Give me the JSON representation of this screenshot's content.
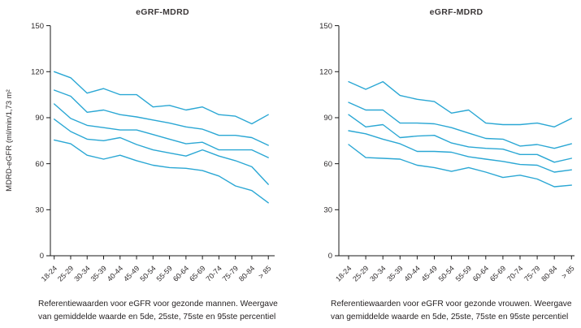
{
  "chart_data": [
    {
      "type": "line",
      "title": "eGRF-MDRD",
      "ylabel": "MDRD-eGFR (ml/min/1,73 m²",
      "caption": "Referentiewaarden voor eGFR voor gezonde mannen. Weergave van gemiddelde waarde en 5de, 25ste, 75ste en 95ste percentiel",
      "categories": [
        "18-24",
        "25-29",
        "30-34",
        "35-39",
        "40-44",
        "45-49",
        "50-54",
        "55-59",
        "60-64",
        "65-69",
        "70-74",
        "75-79",
        "80-84",
        "> 85"
      ],
      "yticks": [
        0,
        30,
        60,
        90,
        120,
        150
      ],
      "ylim": [
        0,
        150
      ],
      "grid": false,
      "legend": "none",
      "line_color": "#2AA7D4",
      "axis_color": "#1a1a1a",
      "series": [
        {
          "name": "95ste percentiel",
          "values": [
            120,
            116,
            106,
            109,
            105,
            105,
            97,
            98,
            95,
            97,
            92,
            91,
            86,
            92
          ]
        },
        {
          "name": "75ste percentiel",
          "values": [
            108,
            104,
            93.5,
            95,
            92,
            90.5,
            88.5,
            86.5,
            84,
            82.5,
            78.5,
            78.5,
            77,
            72
          ]
        },
        {
          "name": "gemiddelde waarde",
          "values": [
            99,
            89.5,
            85,
            83.5,
            82,
            82,
            79,
            76,
            73,
            74,
            69,
            69,
            69,
            64
          ]
        },
        {
          "name": "25ste percentiel",
          "values": [
            89,
            81,
            76,
            75,
            77,
            72.5,
            69,
            67,
            65,
            69,
            65,
            62,
            58,
            46.5
          ]
        },
        {
          "name": "5de percentiel",
          "values": [
            75.5,
            73,
            65.5,
            63,
            65.5,
            62,
            59,
            57.5,
            57,
            55.5,
            52,
            45.5,
            42.5,
            34.5
          ]
        }
      ]
    },
    {
      "type": "line",
      "title": "eGRF-MDRD",
      "ylabel": "",
      "caption": "Referentiewaarden voor eGFR voor gezonde vrouwen. Weergave van gemiddelde waarde en 5de, 25ste, 75ste en 95ste percentiel",
      "categories": [
        "18-24",
        "25-29",
        "30-34",
        "35-39",
        "40-44",
        "45-49",
        "50-54",
        "55-59",
        "60-64",
        "65-69",
        "70-74",
        "75-79",
        "80-84",
        "> 85"
      ],
      "yticks": [
        0,
        30,
        60,
        90,
        120,
        150
      ],
      "ylim": [
        0,
        150
      ],
      "grid": false,
      "legend": "none",
      "line_color": "#2AA7D4",
      "axis_color": "#1a1a1a",
      "series": [
        {
          "name": "95ste percentiel",
          "values": [
            113.5,
            108.5,
            113.5,
            104.5,
            102,
            100.5,
            93,
            95,
            86.5,
            85.5,
            85.5,
            86.5,
            84,
            89.5
          ]
        },
        {
          "name": "75ste percentiel",
          "values": [
            100,
            95,
            95,
            86.5,
            86.5,
            86,
            83.5,
            80,
            76.5,
            76,
            71.5,
            72.5,
            70,
            73
          ]
        },
        {
          "name": "gemiddelde waarde",
          "values": [
            92,
            84,
            85.5,
            77,
            78,
            78.5,
            73.5,
            71,
            70,
            69.5,
            66,
            66,
            61,
            63.5
          ]
        },
        {
          "name": "25ste percentiel",
          "values": [
            81.5,
            79.5,
            76,
            73,
            68,
            68,
            67.5,
            64.5,
            63,
            61.5,
            59.5,
            59,
            54.5,
            56
          ]
        },
        {
          "name": "5de percentiel",
          "values": [
            72.5,
            64,
            63.5,
            63,
            59,
            57.5,
            55,
            57.5,
            54.5,
            51,
            52.5,
            50,
            45,
            46
          ]
        }
      ]
    }
  ]
}
